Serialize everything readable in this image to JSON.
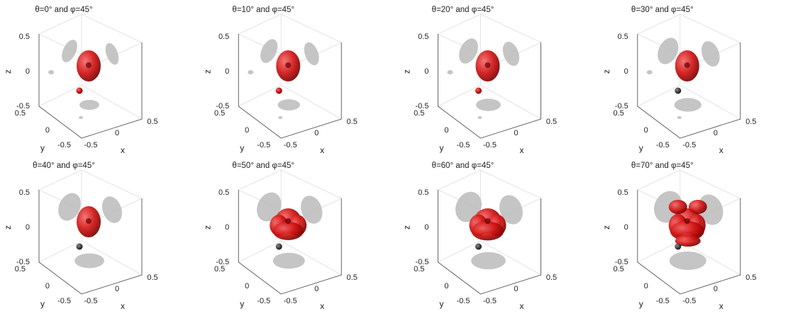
{
  "axes": {
    "x_label": "x",
    "y_label": "y",
    "z_label": "z",
    "ticks": [
      "0.5",
      "0",
      "-0.5"
    ]
  },
  "panels": [
    {
      "title": "θ=0°  and  φ=45°"
    },
    {
      "title": "θ=10°  and  φ=45°"
    },
    {
      "title": "θ=20°  and  φ=45°"
    },
    {
      "title": "θ=30°  and  φ=45°"
    },
    {
      "title": "θ=40°  and  φ=45°"
    },
    {
      "title": "θ=50°  and  φ=45°"
    },
    {
      "title": "θ=60°  and  φ=45°"
    },
    {
      "title": "θ=70°  and  φ=45°"
    }
  ]
}
